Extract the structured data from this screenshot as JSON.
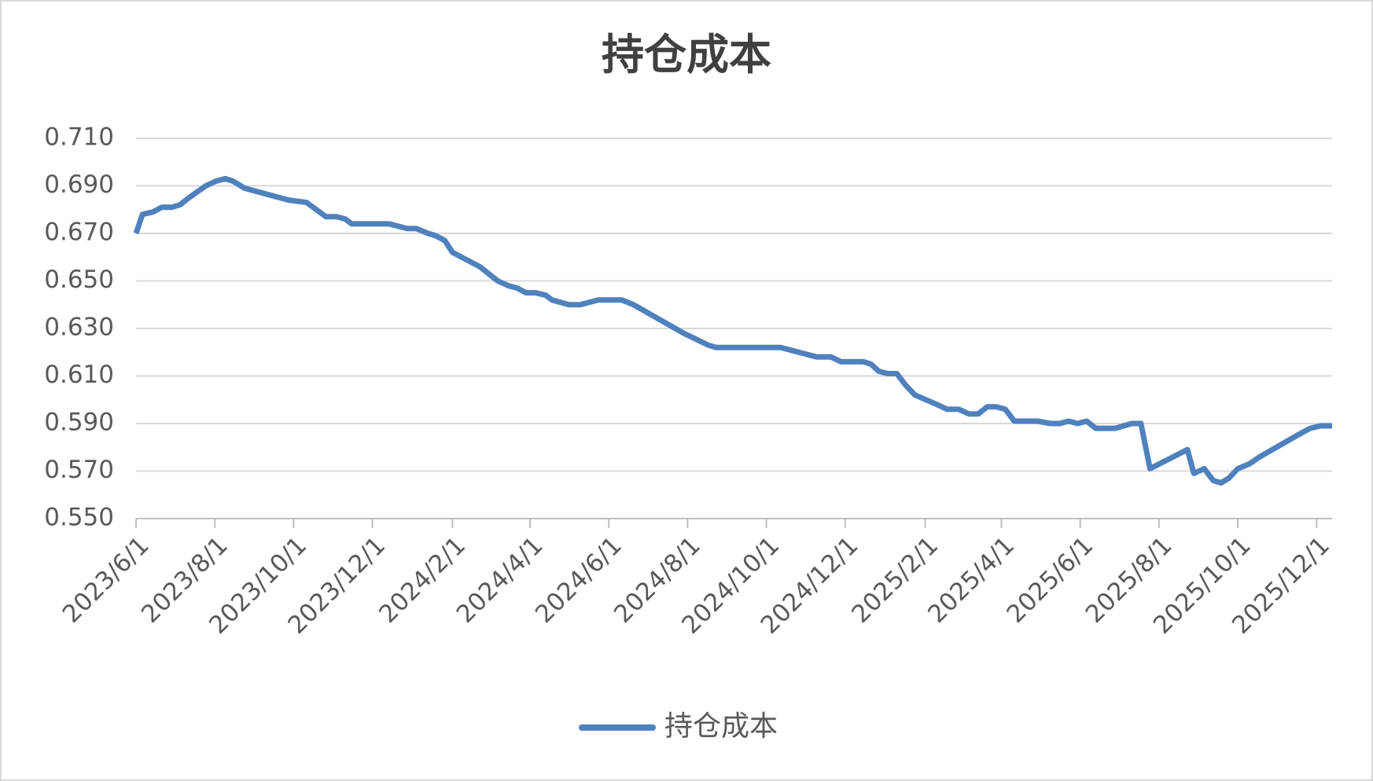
{
  "chart_data": {
    "type": "line",
    "title": "持仓成本",
    "x": [
      "2023/6/1",
      "2023/6/6",
      "2023/6/14",
      "2023/6/21",
      "2023/6/29",
      "2023/7/5",
      "2023/7/12",
      "2023/7/25",
      "2023/8/2",
      "2023/8/9",
      "2023/8/15",
      "2023/8/24",
      "2023/9/27",
      "2023/10/11",
      "2023/10/26",
      "2023/11/3",
      "2023/11/10",
      "2023/11/15",
      "2023/12/14",
      "2023/12/28",
      "2024/1/4",
      "2024/1/13",
      "2024/1/19",
      "2024/1/26",
      "2024/2/1",
      "2024/2/22",
      "2024/3/7",
      "2024/3/15",
      "2024/3/22",
      "2024/3/29",
      "2024/4/5",
      "2024/4/13",
      "2024/4/18",
      "2024/5/1",
      "2024/5/10",
      "2024/5/24",
      "2024/6/11",
      "2024/6/20",
      "2024/7/29",
      "2024/8/17",
      "2024/8/23",
      "2024/10/12",
      "2024/11/9",
      "2024/11/20",
      "2024/11/28",
      "2024/12/15",
      "2024/12/21",
      "2024/12/27",
      "2025/1/3",
      "2025/1/10",
      "2025/1/17",
      "2025/1/24",
      "2025/2/10",
      "2025/2/18",
      "2025/2/27",
      "2025/3/7",
      "2025/3/14",
      "2025/3/21",
      "2025/3/28",
      "2025/4/4",
      "2025/4/11",
      "2025/4/29",
      "2025/5/9",
      "2025/5/16",
      "2025/5/23",
      "2025/5/30",
      "2025/6/6",
      "2025/6/13",
      "2025/6/28",
      "2025/7/11",
      "2025/7/18",
      "2025/7/25",
      "2025/8/23",
      "2025/8/28",
      "2025/9/5",
      "2025/9/12",
      "2025/9/18",
      "2025/9/24",
      "2025/10/1",
      "2025/10/10",
      "2025/10/18",
      "2025/11/16",
      "2025/11/26",
      "2025/12/4",
      "2025/12/13"
    ],
    "series": [
      {
        "name": "持仓成本",
        "color": "#4f81bd",
        "values": [
          0.67,
          0.678,
          0.679,
          0.681,
          0.681,
          0.682,
          0.685,
          0.69,
          0.692,
          0.693,
          0.692,
          0.689,
          0.684,
          0.683,
          0.677,
          0.677,
          0.676,
          0.674,
          0.674,
          0.672,
          0.672,
          0.67,
          0.669,
          0.667,
          0.662,
          0.656,
          0.65,
          0.648,
          0.647,
          0.645,
          0.645,
          0.644,
          0.642,
          0.64,
          0.64,
          0.642,
          0.642,
          0.64,
          0.628,
          0.623,
          0.622,
          0.622,
          0.618,
          0.618,
          0.616,
          0.616,
          0.615,
          0.612,
          0.611,
          0.611,
          0.606,
          0.602,
          0.598,
          0.596,
          0.596,
          0.594,
          0.594,
          0.597,
          0.597,
          0.596,
          0.591,
          0.591,
          0.59,
          0.59,
          0.591,
          0.59,
          0.591,
          0.588,
          0.588,
          0.59,
          0.59,
          0.571,
          0.579,
          0.569,
          0.571,
          0.566,
          0.565,
          0.567,
          0.571,
          0.573,
          0.576,
          0.585,
          0.588,
          0.589,
          0.589
        ]
      }
    ],
    "xlim": [
      "2023/6/1",
      "2025/12/13"
    ],
    "xticks": [
      "2023/6/1",
      "2023/8/1",
      "2023/10/1",
      "2023/12/1",
      "2024/2/1",
      "2024/4/1",
      "2024/6/1",
      "2024/8/1",
      "2024/10/1",
      "2024/12/1",
      "2025/2/1",
      "2025/4/1",
      "2025/6/1",
      "2025/8/1",
      "2025/10/1",
      "2025/12/1"
    ],
    "ylim": [
      0.55,
      0.71
    ],
    "yticks": [
      {
        "value": 0.55,
        "label": "0.550"
      },
      {
        "value": 0.57,
        "label": "0.570"
      },
      {
        "value": 0.59,
        "label": "0.590"
      },
      {
        "value": 0.61,
        "label": "0.610"
      },
      {
        "value": 0.63,
        "label": "0.630"
      },
      {
        "value": 0.65,
        "label": "0.650"
      },
      {
        "value": 0.67,
        "label": "0.670"
      },
      {
        "value": 0.69,
        "label": "0.690"
      },
      {
        "value": 0.71,
        "label": "0.710"
      }
    ],
    "grid": true,
    "legend": "bottom"
  }
}
